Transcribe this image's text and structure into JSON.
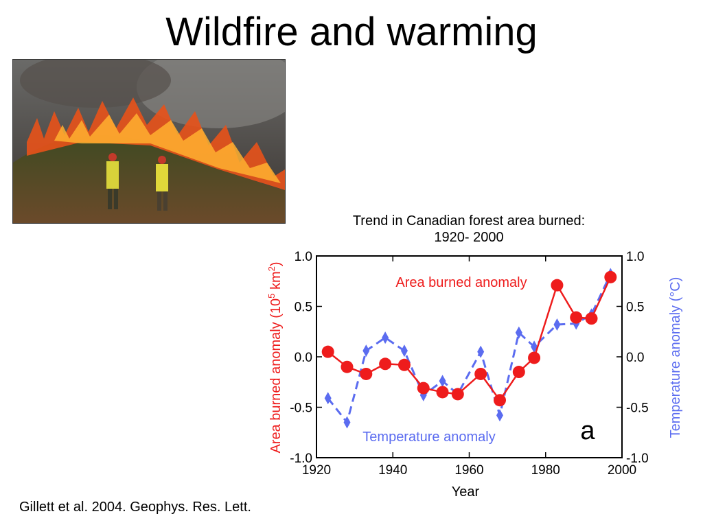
{
  "slide": {
    "title": "Wildfire and warming",
    "citation": "Gillett et al. 2004. Geophys. Res. Lett."
  },
  "photo": {
    "description_icon": "wildfire-photo-icon"
  },
  "chart_data": {
    "type": "line",
    "title": "Trend in Canadian forest area burned:",
    "subtitle": "1920- 2000",
    "xlabel": "Year",
    "ylabel_left_main": "Area burned anomaly  (10",
    "ylabel_left_sup1": "5",
    "ylabel_left_mid": " km",
    "ylabel_left_sup2": "2",
    "ylabel_left_end": ")",
    "ylabel_right": "Temperature anomaly (°C)",
    "panel_letter": "a",
    "xlim": [
      1920,
      2000
    ],
    "ylim": [
      -1.0,
      1.0
    ],
    "x_ticks": [
      1920,
      1940,
      1960,
      1980,
      2000
    ],
    "y_ticks": [
      1.0,
      0.5,
      0.0,
      -0.5,
      -1.0
    ],
    "y_tick_labels": [
      "1.0",
      "0.5",
      "0.0",
      "-0.5",
      "-1.0"
    ],
    "grid": false,
    "colors": {
      "area": "#ee1c1c",
      "temperature": "#5b6cf0",
      "axis": "#000000"
    },
    "series": [
      {
        "name": "Area burned anomaly",
        "style": "solid-line-circles",
        "x": [
          1923,
          1928,
          1933,
          1938,
          1943,
          1948,
          1953,
          1957,
          1963,
          1968,
          1973,
          1977,
          1983,
          1988,
          1992,
          1997
        ],
        "values": [
          0.05,
          -0.1,
          -0.17,
          -0.07,
          -0.08,
          -0.31,
          -0.35,
          -0.37,
          -0.17,
          -0.43,
          -0.15,
          -0.01,
          0.71,
          0.39,
          0.38,
          0.79
        ]
      },
      {
        "name": "Temperature anomaly",
        "style": "dashed-line-diamonds",
        "x": [
          1923,
          1928,
          1933,
          1938,
          1943,
          1948,
          1953,
          1957,
          1963,
          1968,
          1973,
          1977,
          1983,
          1988,
          1992,
          1997
        ],
        "values": [
          -0.41,
          -0.65,
          0.06,
          0.19,
          0.06,
          -0.38,
          -0.24,
          -0.37,
          0.05,
          -0.58,
          0.24,
          0.1,
          0.32,
          0.33,
          0.42,
          0.82
        ]
      }
    ]
  }
}
